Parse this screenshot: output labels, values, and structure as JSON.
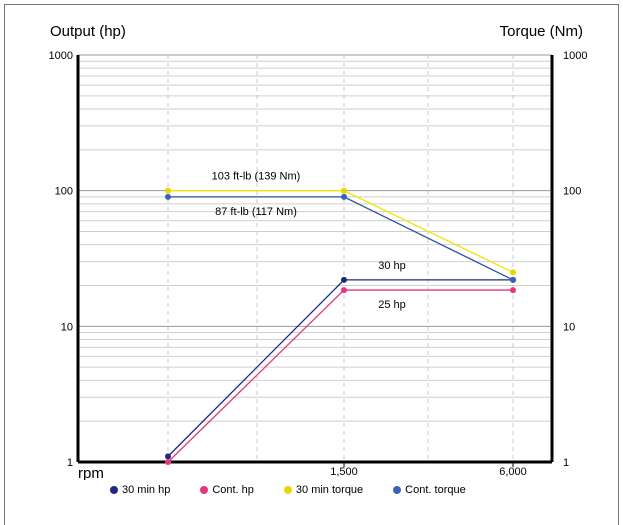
{
  "chart_data": {
    "type": "line",
    "left_axis_title": "Output (hp)",
    "right_axis_title": "Torque (Nm)",
    "xlabel": "rpm",
    "y_scale": "log",
    "ylim": [
      1,
      1000
    ],
    "y_ticks": [
      1,
      10,
      100,
      1000
    ],
    "y_tick_labels": [
      "1",
      "10",
      "100",
      "1000"
    ],
    "x_tick_labels": [
      "1,500",
      "6,000"
    ],
    "grid": true,
    "series": [
      {
        "name": "30 min hp",
        "color": "#1f2a7a",
        "marker": "#1f2a7a",
        "x": [
          "start",
          "1,500",
          "6,000"
        ],
        "values": [
          1.1,
          22,
          22
        ]
      },
      {
        "name": "Cont. hp",
        "color": "#e8357f",
        "marker": "#e8357f",
        "x": [
          "start",
          "1,500",
          "6,000"
        ],
        "values": [
          1.0,
          18.5,
          18.5
        ]
      },
      {
        "name": "30 min torque",
        "color": "#f5e100",
        "marker": "#e6d800",
        "x": [
          "start",
          "1,500",
          "6,000"
        ],
        "values": [
          100,
          100,
          25
        ]
      },
      {
        "name": "Cont. torque",
        "color": "#2a4fa0",
        "marker": "#3a63b8",
        "x": [
          "start",
          "1,500",
          "6,000"
        ],
        "values": [
          90,
          90,
          22
        ]
      }
    ],
    "annotations": [
      {
        "text": "103 ft-lb (139 Nm)",
        "x_anchor": "mid-first",
        "y": 100,
        "pos": "above"
      },
      {
        "text": "87 ft-lb (117 Nm)",
        "x_anchor": "mid-first",
        "y": 90,
        "pos": "below"
      },
      {
        "text": "30 hp",
        "x_anchor": "mid-second",
        "y": 22,
        "pos": "above"
      },
      {
        "text": "25 hp",
        "x_anchor": "mid-second",
        "y": 18.5,
        "pos": "below"
      }
    ],
    "legend_position": "bottom"
  }
}
